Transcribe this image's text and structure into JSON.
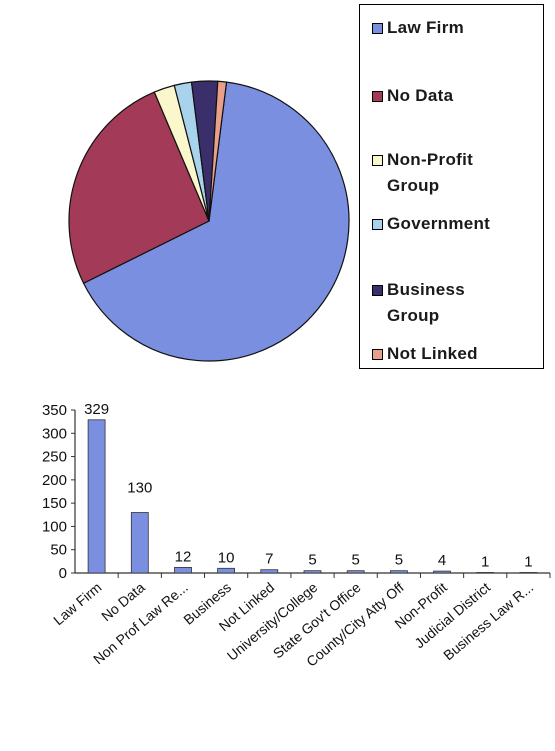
{
  "chart_data": [
    {
      "type": "pie",
      "categories": [
        "Law Firm",
        "No Data",
        "Non-Profit Group",
        "Government",
        "Business Group",
        "Not Linked"
      ],
      "values": [
        329,
        130,
        12,
        10,
        15,
        5
      ],
      "colors": [
        "#7b8fe0",
        "#a33a58",
        "#fbf7cc",
        "#a9d3ec",
        "#3a2f6b",
        "#e8a08a"
      ],
      "legend_position": "right"
    },
    {
      "type": "bar",
      "categories": [
        "Law Firm",
        "No Data",
        "Non Prof Law Re...",
        "Business",
        "Not Linked",
        "University/College",
        "State Gov't Office",
        "County/City Atty Off",
        "Non-Profit",
        "Judicial District",
        "Business Law R..."
      ],
      "values": [
        329,
        130,
        12,
        10,
        7,
        5,
        5,
        5,
        4,
        1,
        1
      ],
      "ylim": [
        0,
        350
      ],
      "yticks": [
        "0",
        "50",
        "100",
        "150",
        "200",
        "250",
        "300",
        "350"
      ],
      "bar_color": "#7b8fe0",
      "legend": [
        "Law Firm",
        "No Data",
        "Non-Profit Group",
        "Government",
        "Business Group",
        "Not Linked"
      ]
    }
  ]
}
